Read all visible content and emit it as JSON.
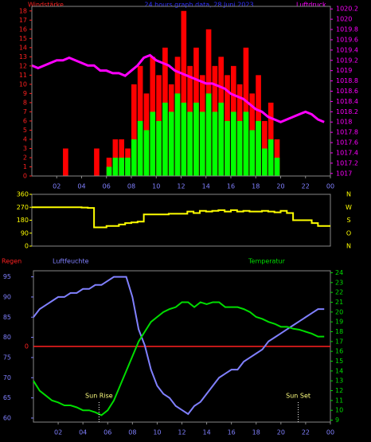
{
  "chart_data": [
    {
      "type": "bar_line",
      "title": "24 hours graph data, 28 Juni 2023",
      "y_label": "Windstärke",
      "y2_label": "Luftdruck",
      "x": [
        0,
        0.5,
        1,
        1.5,
        2,
        2.5,
        3,
        3.5,
        4,
        4.5,
        5,
        5.5,
        6,
        6.5,
        7,
        7.5,
        8,
        8.5,
        9,
        9.5,
        10,
        10.5,
        11,
        11.5,
        12,
        12.5,
        13,
        13.5,
        14,
        14.5,
        15,
        15.5,
        16,
        16.5,
        17,
        17.5,
        18,
        18.5,
        19,
        19.5,
        20,
        20.5,
        21,
        21.5,
        22,
        22.5,
        23,
        23.5
      ],
      "xlim": [
        0,
        24
      ],
      "xticks": [
        {
          "value": 2,
          "label": "02"
        },
        {
          "value": 4,
          "label": "04"
        },
        {
          "value": 6,
          "label": "06"
        },
        {
          "value": 8,
          "label": "08"
        },
        10,
        12,
        14,
        16,
        18,
        20,
        22,
        {
          "value": 24,
          "label": "00"
        }
      ],
      "ylim": [
        0,
        18.5
      ],
      "yticks": [
        0,
        1,
        2,
        3,
        4,
        5,
        6,
        7,
        8,
        9,
        10,
        11,
        12,
        13,
        14,
        15,
        16,
        17,
        18
      ],
      "y2lim": [
        1016.95,
        1020.25
      ],
      "y2ticks": [
        1017,
        1017.2,
        1017.4,
        1017.6,
        1017.8,
        1018,
        1018.2,
        1018.4,
        1018.6,
        1018.8,
        1019,
        1019.2,
        1019.4,
        1019.6,
        1019.8,
        1020,
        1020.2
      ],
      "series": [
        {
          "kind": "bar",
          "color": "#ff0000",
          "values": [
            0,
            0,
            0,
            0,
            0,
            3,
            0,
            0,
            0,
            0,
            3,
            0,
            2,
            4,
            4,
            3,
            10,
            12,
            9,
            13,
            11,
            14,
            10,
            13,
            18,
            12,
            14,
            11,
            16,
            12,
            13,
            11,
            12,
            10,
            14,
            9,
            11,
            6,
            8,
            4,
            0,
            0,
            0,
            0,
            0,
            0,
            0,
            0
          ]
        },
        {
          "kind": "bar",
          "color": "#00ff00",
          "values": [
            0,
            0,
            0,
            0,
            0,
            0,
            0,
            0,
            0,
            0,
            0,
            0,
            1,
            2,
            2,
            2,
            4,
            6,
            5,
            7,
            6,
            8,
            7,
            9,
            8,
            7,
            8,
            7,
            9,
            7,
            8,
            6,
            7,
            6,
            7,
            5,
            6,
            3,
            4,
            2,
            0,
            0,
            0,
            0,
            0,
            0,
            0,
            0
          ]
        },
        {
          "kind": "line",
          "axis": "y2",
          "color": "#ff00ff",
          "values": [
            1019.1,
            1019.05,
            1019.1,
            1019.15,
            1019.2,
            1019.2,
            1019.25,
            1019.2,
            1019.15,
            1019.1,
            1019.1,
            1019.0,
            1019.0,
            1018.95,
            1018.95,
            1018.9,
            1019.0,
            1019.1,
            1019.25,
            1019.3,
            1019.2,
            1019.15,
            1019.1,
            1019.0,
            1018.95,
            1018.9,
            1018.85,
            1018.8,
            1018.75,
            1018.75,
            1018.7,
            1018.65,
            1018.55,
            1018.5,
            1018.45,
            1018.35,
            1018.25,
            1018.2,
            1018.1,
            1018.05,
            1018.0,
            1018.05,
            1018.1,
            1018.15,
            1018.2,
            1018.15,
            1018.05,
            1018.0
          ]
        }
      ]
    },
    {
      "type": "step",
      "x": [
        0,
        0.5,
        1,
        1.5,
        2,
        2.5,
        3,
        3.5,
        4,
        4.5,
        5,
        5.5,
        6,
        6.5,
        7,
        7.5,
        8,
        8.5,
        9,
        9.5,
        10,
        10.5,
        11,
        11.5,
        12,
        12.5,
        13,
        13.5,
        14,
        14.5,
        15,
        15.5,
        16,
        16.5,
        17,
        17.5,
        18,
        18.5,
        19,
        19.5,
        20,
        20.5,
        21,
        21.5,
        22,
        22.5,
        23,
        23.5
      ],
      "xlim": [
        0,
        24
      ],
      "ylim": [
        0,
        360
      ],
      "yticks": [
        0,
        90,
        180,
        270,
        360
      ],
      "compass": [
        {
          "value": 360,
          "label": "N"
        },
        {
          "value": 270,
          "label": "W"
        },
        {
          "value": 180,
          "label": "S"
        },
        {
          "value": 90,
          "label": "O"
        },
        {
          "value": 0,
          "label": "N"
        }
      ],
      "series": [
        {
          "color": "#ffff00",
          "values": [
            270,
            270,
            270,
            270,
            270,
            270,
            270,
            270,
            268,
            265,
            130,
            130,
            140,
            140,
            150,
            160,
            165,
            170,
            220,
            220,
            220,
            220,
            225,
            225,
            225,
            240,
            230,
            245,
            240,
            245,
            250,
            240,
            250,
            240,
            245,
            240,
            240,
            245,
            240,
            235,
            245,
            230,
            180,
            180,
            180,
            160,
            140,
            140
          ]
        }
      ]
    },
    {
      "type": "line",
      "y_label": "Luftfeuchte",
      "y2_label": "Temperatur",
      "rain_label": "Regen",
      "rain_ticks": [
        0
      ],
      "x": [
        0,
        0.5,
        1,
        1.5,
        2,
        2.5,
        3,
        3.5,
        4,
        4.5,
        5,
        5.5,
        6,
        6.5,
        7,
        7.5,
        8,
        8.5,
        9,
        9.5,
        10,
        10.5,
        11,
        11.5,
        12,
        12.5,
        13,
        13.5,
        14,
        14.5,
        15,
        15.5,
        16,
        16.5,
        17,
        17.5,
        18,
        18.5,
        19,
        19.5,
        20,
        20.5,
        21,
        21.5,
        22,
        22.5,
        23,
        23.5
      ],
      "xlim": [
        0,
        24
      ],
      "xticks": [
        {
          "value": 2,
          "label": "02"
        },
        {
          "value": 4,
          "label": "04"
        },
        {
          "value": 6,
          "label": "06"
        },
        {
          "value": 8,
          "label": "08"
        },
        10,
        12,
        14,
        16,
        18,
        20,
        22,
        {
          "value": 24,
          "label": "00"
        }
      ],
      "ylim": [
        59,
        96.5
      ],
      "yticks": [
        60,
        65,
        70,
        75,
        80,
        85,
        90,
        95
      ],
      "y2lim": [
        8.8,
        24.2
      ],
      "y2ticks": [
        9,
        10,
        11,
        12,
        13,
        14,
        15,
        16,
        17,
        18,
        19,
        20,
        21,
        22,
        23,
        24
      ],
      "annotations": [
        {
          "x": 5.3,
          "text": "Sun Rise"
        },
        {
          "x": 21.4,
          "text": "Sun Set"
        }
      ],
      "series": [
        {
          "color": "#8080ff",
          "values": [
            85,
            87,
            88,
            89,
            90,
            90,
            91,
            91,
            92,
            92,
            93,
            93,
            94,
            95,
            95,
            95,
            90,
            82,
            78,
            72,
            68,
            66,
            65,
            63,
            62,
            61,
            63,
            64,
            66,
            68,
            70,
            71,
            72,
            72,
            74,
            75,
            76,
            77,
            79,
            80,
            81,
            82,
            83,
            84,
            85,
            86,
            87,
            87
          ]
        },
        {
          "axis": "y2",
          "color": "#00dd00",
          "values": [
            13,
            12,
            11.5,
            11,
            10.8,
            10.5,
            10.5,
            10.3,
            10,
            10,
            9.8,
            9.5,
            10,
            11,
            12.5,
            14,
            15.5,
            17,
            18,
            19,
            19.5,
            20,
            20.3,
            20.5,
            21,
            21,
            20.5,
            21,
            20.8,
            21,
            21,
            20.5,
            20.5,
            20.5,
            20.3,
            20,
            19.5,
            19.3,
            19,
            18.8,
            18.5,
            18.5,
            18.3,
            18.2,
            18,
            17.8,
            17.5,
            17.5
          ]
        }
      ]
    }
  ]
}
